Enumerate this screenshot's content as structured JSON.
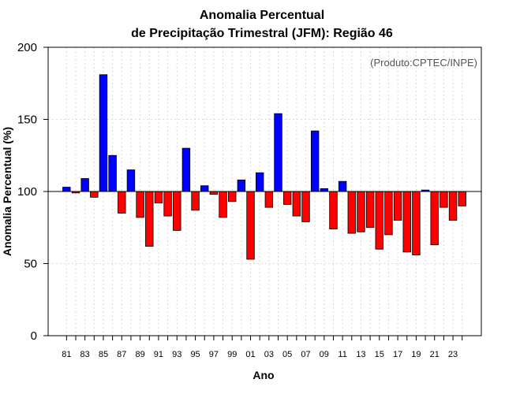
{
  "chart_data": {
    "type": "bar",
    "title": [
      "Anomalia Percentual",
      "de Precipitação Trimestral (JFM): Região 46"
    ],
    "xlabel": "Ano",
    "ylabel": "Anomalia Percentual (%)",
    "ylim": [
      0,
      200
    ],
    "yticks": [
      0,
      50,
      100,
      150,
      200
    ],
    "baseline": 100,
    "grid": true,
    "annotation": "(Produto:CPTEC/INPE)",
    "colors": {
      "above": "#0000ff",
      "below": "#ff0000",
      "grid": "#d9d9d9"
    },
    "categories": [
      "81",
      "82",
      "83",
      "84",
      "85",
      "86",
      "87",
      "88",
      "89",
      "90",
      "91",
      "92",
      "93",
      "94",
      "95",
      "96",
      "97",
      "98",
      "99",
      "00",
      "01",
      "02",
      "03",
      "04",
      "05",
      "06",
      "07",
      "08",
      "09",
      "10",
      "11",
      "12",
      "13",
      "14",
      "15",
      "16",
      "17",
      "18",
      "19",
      "20",
      "21",
      "22",
      "23",
      "24"
    ],
    "xticklabels": [
      "81",
      "83",
      "85",
      "87",
      "89",
      "91",
      "93",
      "95",
      "97",
      "99",
      "01",
      "03",
      "05",
      "07",
      "09",
      "11",
      "13",
      "15",
      "17",
      "19",
      "21",
      "23"
    ],
    "values": [
      103,
      99,
      109,
      96,
      181,
      125,
      85,
      115,
      82,
      62,
      92,
      83,
      73,
      130,
      87,
      104,
      98,
      82,
      93,
      108,
      53,
      113,
      89,
      154,
      91,
      83,
      79,
      142,
      102,
      74,
      107,
      71,
      72,
      75,
      60,
      70,
      80,
      58,
      56,
      101,
      63,
      89,
      80,
      90
    ]
  }
}
